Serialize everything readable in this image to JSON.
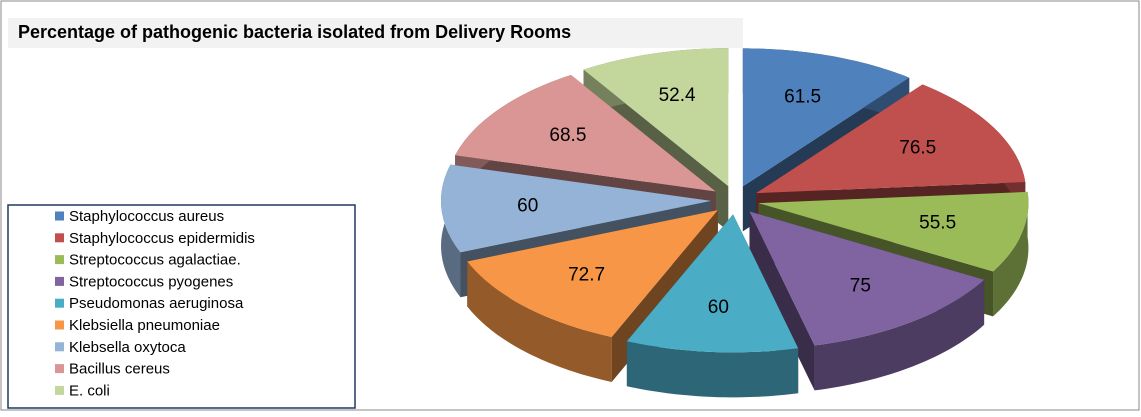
{
  "chart_data": {
    "type": "pie",
    "title": "Percentage  of pathogenic bacteria isolated from Delivery Rooms",
    "categories": [
      "Staphylococcus  aureus",
      "Staphylococcus  epidermidis",
      "Streptococcus  agalactiae.",
      "Streptococcus pyogenes",
      "Pseudomonas aeruginosa",
      "Klebsiella pneumoniae",
      "Klebsella oxytoca",
      "Bacillus cereus",
      "E. coli"
    ],
    "values": [
      61.5,
      76.5,
      55.5,
      75,
      60,
      72.7,
      60,
      68.5,
      52.4
    ],
    "colors": [
      "#4f81bd",
      "#c0504d",
      "#9bbb59",
      "#8064a2",
      "#4bacc6",
      "#f79646",
      "#95b3d7",
      "#d99694",
      "#c3d69b"
    ]
  }
}
